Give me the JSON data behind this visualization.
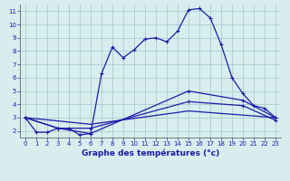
{
  "xlabel": "Graphe des températures (°c)",
  "background_color": "#d8eeee",
  "grid_color": "#aacccc",
  "line_color": "#1a1aaa",
  "xlim": [
    -0.5,
    23.5
  ],
  "ylim": [
    1.5,
    11.5
  ],
  "xticks": [
    0,
    1,
    2,
    3,
    4,
    5,
    6,
    7,
    8,
    9,
    10,
    11,
    12,
    13,
    14,
    15,
    16,
    17,
    18,
    19,
    20,
    21,
    22,
    23
  ],
  "yticks": [
    2,
    3,
    4,
    5,
    6,
    7,
    8,
    9,
    10,
    11
  ],
  "curve1_x": [
    0,
    1,
    2,
    3,
    4,
    5,
    6,
    7,
    8,
    9,
    10,
    11,
    12,
    13,
    14,
    15,
    16,
    17,
    18,
    19,
    20,
    21,
    22,
    23
  ],
  "curve1_y": [
    3.0,
    1.9,
    1.9,
    2.2,
    2.2,
    1.7,
    1.8,
    6.3,
    8.3,
    7.5,
    8.1,
    8.9,
    9.0,
    8.7,
    9.5,
    11.1,
    11.2,
    10.5,
    8.5,
    6.0,
    4.8,
    3.9,
    3.7,
    3.0
  ],
  "curve2_x": [
    0,
    3,
    6,
    15,
    20,
    23
  ],
  "curve2_y": [
    3.0,
    2.2,
    1.8,
    5.0,
    4.3,
    3.0
  ],
  "curve3_x": [
    0,
    3,
    6,
    15,
    20,
    23
  ],
  "curve3_y": [
    3.0,
    2.2,
    2.2,
    4.2,
    3.9,
    2.8
  ],
  "curve4_x": [
    0,
    6,
    15,
    23
  ],
  "curve4_y": [
    3.0,
    2.5,
    3.5,
    3.0
  ],
  "label_fontsize": 5.5,
  "tick_fontsize": 5.0,
  "xlabel_fontsize": 6.5
}
